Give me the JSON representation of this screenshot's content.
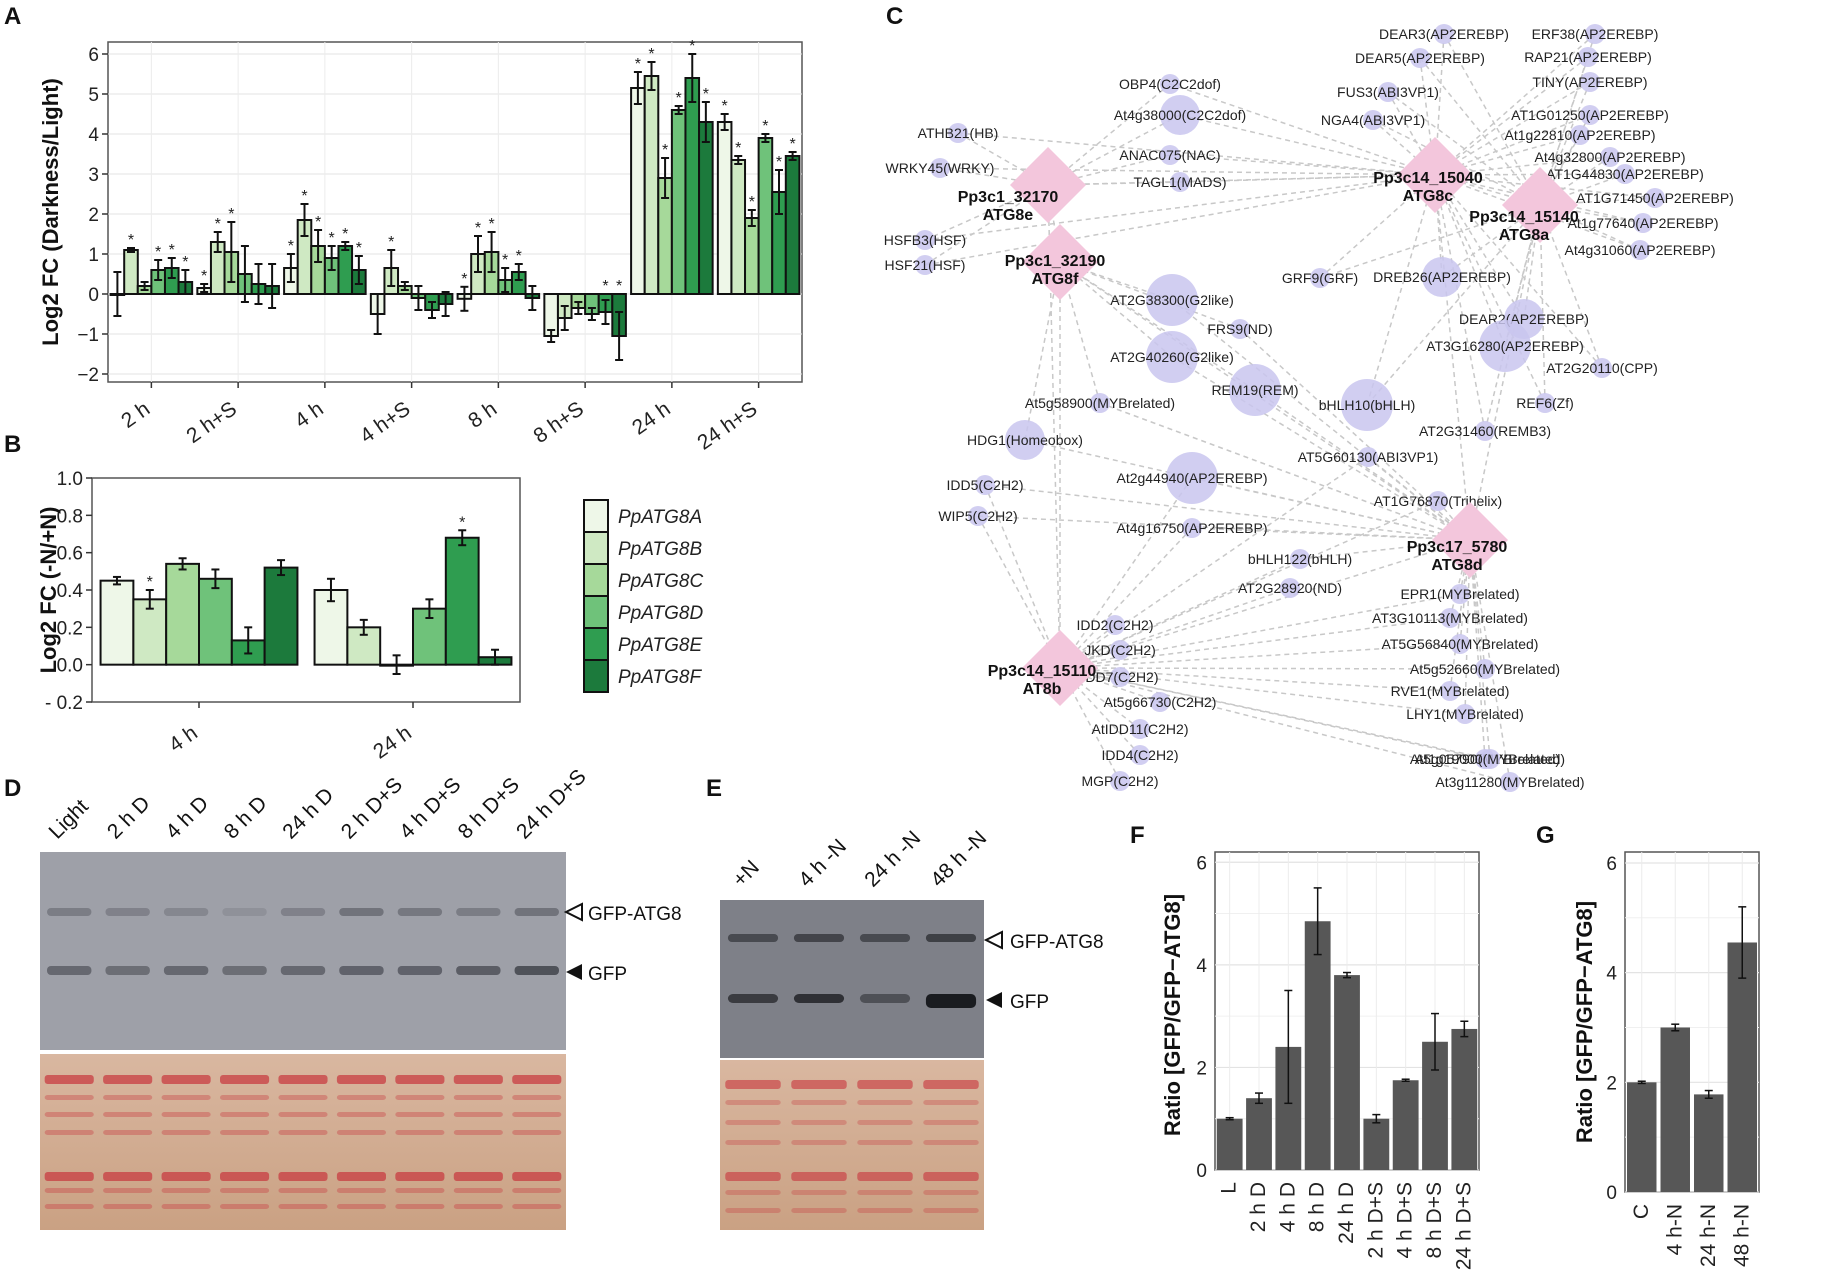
{
  "colors": {
    "series": [
      "#eef7e8",
      "#cfe9c3",
      "#a6d99a",
      "#6fc27a",
      "#2f9d50",
      "#1c7a3c"
    ],
    "hub": "#f3c6dc",
    "tf": "#c9c6ee",
    "gridBg": "#ffffff",
    "edge": "#c8c8c8",
    "barGrey": "#575757"
  },
  "panel_labels": {
    "a": "A",
    "b": "B",
    "c": "C",
    "d": "D",
    "e": "E",
    "f": "F",
    "g": "G"
  },
  "chart_data": [
    {
      "id": "A",
      "type": "bar",
      "title": "",
      "ylabel": "Log2 FC (Darkness/Light)",
      "xlabel": "",
      "ylim": [
        -2.2,
        6.3
      ],
      "yticks": [
        -2,
        -1,
        0,
        1,
        2,
        3,
        4,
        5,
        6
      ],
      "ytick_labels": [
        "−2",
        "−1",
        "0",
        "1",
        "2",
        "3",
        "4",
        "5",
        "6"
      ],
      "categories": [
        "2 h",
        "2 h+S",
        "4 h",
        "4 h+S",
        "8 h",
        "8 h+S",
        "24 h",
        "24 h+S"
      ],
      "series": [
        {
          "name": "PpATG8A",
          "values": [
            0.0,
            0.15,
            0.65,
            -0.5,
            -0.12,
            -1.05,
            5.15,
            4.3
          ],
          "err": [
            0.55,
            0.1,
            0.35,
            0.5,
            0.3,
            0.15,
            0.4,
            0.2
          ],
          "stars": [
            false,
            true,
            true,
            false,
            true,
            false,
            true,
            true
          ]
        },
        {
          "name": "PpATG8B",
          "values": [
            1.1,
            1.3,
            1.85,
            0.65,
            1.0,
            -0.6,
            5.45,
            3.35
          ],
          "err": [
            0.05,
            0.25,
            0.4,
            0.45,
            0.45,
            0.3,
            0.35,
            0.1
          ],
          "stars": [
            true,
            true,
            true,
            true,
            true,
            false,
            true,
            true
          ]
        },
        {
          "name": "PpATG8C",
          "values": [
            0.2,
            1.05,
            1.2,
            0.2,
            1.05,
            -0.35,
            2.9,
            1.9
          ],
          "err": [
            0.1,
            0.75,
            0.4,
            0.1,
            0.5,
            0.15,
            0.5,
            0.2
          ],
          "stars": [
            false,
            true,
            true,
            false,
            true,
            false,
            true,
            true
          ]
        },
        {
          "name": "PpATG8D",
          "values": [
            0.6,
            0.5,
            0.9,
            -0.1,
            0.35,
            -0.5,
            4.6,
            3.9
          ],
          "err": [
            0.25,
            0.7,
            0.3,
            0.3,
            0.3,
            0.15,
            0.1,
            0.1
          ],
          "stars": [
            true,
            false,
            true,
            false,
            true,
            false,
            true,
            true
          ]
        },
        {
          "name": "PpATG8E",
          "values": [
            0.65,
            0.25,
            1.2,
            -0.4,
            0.55,
            -0.45,
            5.4,
            2.55
          ],
          "err": [
            0.25,
            0.5,
            0.1,
            0.2,
            0.2,
            0.3,
            0.6,
            0.55
          ],
          "stars": [
            true,
            false,
            true,
            false,
            true,
            true,
            true,
            true
          ]
        },
        {
          "name": "PpATG8F",
          "values": [
            0.3,
            0.2,
            0.6,
            -0.25,
            -0.1,
            -1.05,
            4.3,
            3.45
          ],
          "err": [
            0.3,
            0.55,
            0.35,
            0.3,
            0.3,
            0.6,
            0.5,
            0.1
          ],
          "stars": [
            true,
            false,
            true,
            false,
            false,
            true,
            true,
            true
          ]
        }
      ]
    },
    {
      "id": "B",
      "type": "bar",
      "title": "",
      "ylabel": "Log2 FC (-N/+N)",
      "xlabel": "",
      "ylim": [
        -0.2,
        1.0
      ],
      "yticks": [
        -0.2,
        0.0,
        0.2,
        0.4,
        0.6,
        0.8,
        1.0
      ],
      "ytick_labels": [
        "- 0.2",
        "0.0",
        "0.2",
        "0.4",
        "0.6",
        "0.8",
        "1.0"
      ],
      "categories": [
        "4 h",
        "24 h"
      ],
      "series": [
        {
          "name": "PpATG8A",
          "values": [
            0.45,
            0.4
          ],
          "err": [
            0.02,
            0.06
          ],
          "stars": [
            false,
            false
          ]
        },
        {
          "name": "PpATG8B",
          "values": [
            0.35,
            0.2
          ],
          "err": [
            0.05,
            0.04
          ],
          "stars": [
            true,
            false
          ]
        },
        {
          "name": "PpATG8C",
          "values": [
            0.54,
            0.0
          ],
          "err": [
            0.03,
            0.05
          ],
          "stars": [
            false,
            false
          ]
        },
        {
          "name": "PpATG8D",
          "values": [
            0.46,
            0.3
          ],
          "err": [
            0.05,
            0.05
          ],
          "stars": [
            false,
            false
          ]
        },
        {
          "name": "PpATG8E",
          "values": [
            0.13,
            0.68
          ],
          "err": [
            0.07,
            0.04
          ],
          "stars": [
            false,
            true
          ]
        },
        {
          "name": "PpATG8F",
          "values": [
            0.52,
            0.04
          ],
          "err": [
            0.04,
            0.04
          ],
          "stars": [
            false,
            false
          ]
        }
      ]
    },
    {
      "id": "F",
      "type": "bar",
      "title": "",
      "ylabel": "Ratio [GFP/GFP−ATG8]",
      "xlabel": "",
      "ylim": [
        0,
        6.2
      ],
      "yticks": [
        0,
        2,
        4,
        6
      ],
      "ytick_labels": [
        "0",
        "2",
        "4",
        "6"
      ],
      "categories": [
        "L",
        "2 h D",
        "4 h D",
        "8 h D",
        "24 h D",
        "2 h D+S",
        "4 h D+S",
        "8 h D+S",
        "24 h D+S"
      ],
      "values": [
        1.0,
        1.4,
        2.4,
        4.85,
        3.8,
        1.0,
        1.75,
        2.5,
        2.75
      ],
      "err": [
        0.02,
        0.1,
        1.1,
        0.65,
        0.05,
        0.08,
        0.02,
        0.55,
        0.15
      ]
    },
    {
      "id": "G",
      "type": "bar",
      "title": "",
      "ylabel": "Ratio [GFP/GFP−ATG8]",
      "xlabel": "",
      "ylim": [
        0,
        6.2
      ],
      "yticks": [
        0,
        2,
        4,
        6
      ],
      "ytick_labels": [
        "0",
        "2",
        "4",
        "6"
      ],
      "categories": [
        "C",
        "4 h-N",
        "24 h-N",
        "48 h-N"
      ],
      "values": [
        2.0,
        3.0,
        1.78,
        4.55
      ],
      "err": [
        0.02,
        0.06,
        0.07,
        0.65
      ]
    }
  ],
  "legend": {
    "items": [
      "PpATG8A",
      "PpATG8B",
      "PpATG8C",
      "PpATG8D",
      "PpATG8E",
      "PpATG8F"
    ]
  },
  "network": {
    "hubs": [
      {
        "id": "h1",
        "name": "Pp3c1_32170",
        "sub": "ATG8e"
      },
      {
        "id": "h2",
        "name": "Pp3c1_32190",
        "sub": "ATG8f"
      },
      {
        "id": "h3",
        "name": "Pp3c14_15040",
        "sub": "ATG8c"
      },
      {
        "id": "h4",
        "name": "Pp3c14_15140",
        "sub": "ATG8a"
      },
      {
        "id": "h5",
        "name": "Pp3c17_5780",
        "sub": "ATG8d"
      },
      {
        "id": "h6",
        "name": "Pp3c14_15110",
        "sub": "AT8b"
      }
    ],
    "tfs": [
      "DEAR3(AP2EREBP)",
      "DEAR5(AP2EREBP)",
      "ERF38(AP2EREBP)",
      "RAP21(AP2EREBP)",
      "TINY(AP2EREBP)",
      "OBP4(C2C2dof)",
      "FUS3(ABI3VP1)",
      "NGA4(ABI3VP1)",
      "At4g38000(C2C2dof)",
      "AT1G01250(AP2EREBP)",
      "At1g22810(AP2EREBP)",
      "ATHB21(HB)",
      "At4g32800(AP2EREBP)",
      "AT1G44830(AP2EREBP)",
      "ANAC075(NAC)",
      "WRKY45(WRKY)",
      "TAGL1(MADS)",
      "AT1G71450(AP2EREBP)",
      "At1g77640(AP2EREBP)",
      "HSFB3(HSF)",
      "At4g31060(AP2EREBP)",
      "HSF21(HSF)",
      "AT2G38300(G2like)",
      "GRF9(GRF)",
      "DREB26(AP2EREBP)",
      "DEAR2(AP2EREBP)",
      "FRS9(ND)",
      "AT3G16280(AP2EREBP)",
      "AT2G40260(G2like)",
      "AT2G20110(CPP)",
      "REM19(REM)",
      "bHLH10(bHLH)",
      "At5g58900(MYBrelated)",
      "REF6(Zf)",
      "AT2G31460(REMB3)",
      "HDG1(Homeobox)",
      "AT5G60130(ABI3VP1)",
      "At2g44940(AP2EREBP)",
      "IDD5(C2H2)",
      "AT1G76870(Trihelix)",
      "WIP5(C2H2)",
      "At4g16750(AP2EREBP)",
      "bHLH122(bHLH)",
      "AT2G28920(ND)",
      "EPR1(MYBrelated)",
      "IDD2(C2H2)",
      "AT3G10113(MYBrelated)",
      "JKD(C2H2)",
      "AT5G56840(MYBrelated)",
      "IDD7(C2H2)",
      "At5g52660(MYBrelated)",
      "At5g66730(C2H2)",
      "RVE1(MYBrelated)",
      "AtIDD11(C2H2)",
      "LHY1(MYBrelated)",
      "At5g05790(MYBrelated)",
      "IDD4(C2H2)",
      "At1g19000(MYBrelated)",
      "MGP(C2H2)",
      "At3g11280(MYBrelated)"
    ]
  },
  "blot_d": {
    "lanes": [
      "Light",
      "2 h D",
      "4 h D",
      "8 h D",
      "24 h D",
      "2 h D+S",
      "4 h D+S",
      "8 h D+S",
      "24 h D+S"
    ],
    "band_labels": [
      "GFP-ATG8",
      "GFP"
    ]
  },
  "blot_e": {
    "lanes": [
      "+N",
      "4 h -N",
      "24 h -N",
      "48 h -N"
    ],
    "band_labels": [
      "GFP-ATG8",
      "GFP"
    ]
  }
}
